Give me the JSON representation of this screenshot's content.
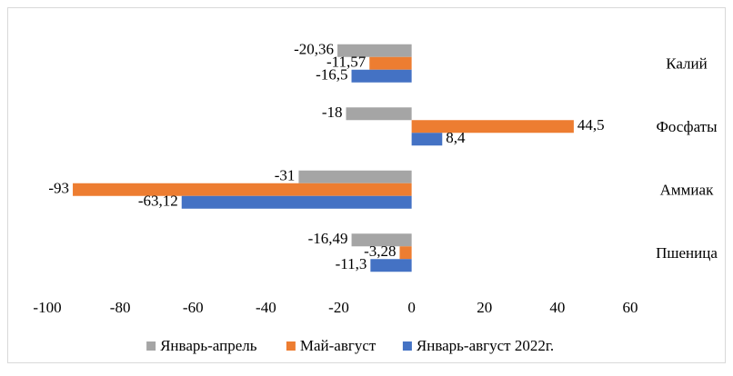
{
  "chart_data": {
    "type": "bar",
    "orientation": "horizontal",
    "categories": [
      "Калий",
      "Фосфаты",
      "Аммиак",
      "Пшеница"
    ],
    "series": [
      {
        "name": "Январь-апрель",
        "color": "#a5a5a5",
        "values": [
          -20.36,
          -18,
          -31,
          -16.49
        ],
        "value_labels": [
          "-20,36",
          "-18",
          "-31",
          "-16,49"
        ]
      },
      {
        "name": "Май-август",
        "color": "#ed7d31",
        "values": [
          -11.57,
          44.5,
          -93,
          -3.28
        ],
        "value_labels": [
          "-11,57",
          "44,5",
          "-93",
          "-3,28"
        ]
      },
      {
        "name": "Январь-август 2022г.",
        "color": "#4472c4",
        "values": [
          -16.5,
          8.4,
          -63.12,
          -11.3
        ],
        "value_labels": [
          "-16,5",
          "8,4",
          "-63,12",
          "-11,3"
        ]
      }
    ],
    "xlim": [
      -100,
      60
    ],
    "xticks": [
      -100,
      -80,
      -60,
      -40,
      -20,
      0,
      20,
      40,
      60
    ],
    "grid": false,
    "legend": "bottom"
  }
}
